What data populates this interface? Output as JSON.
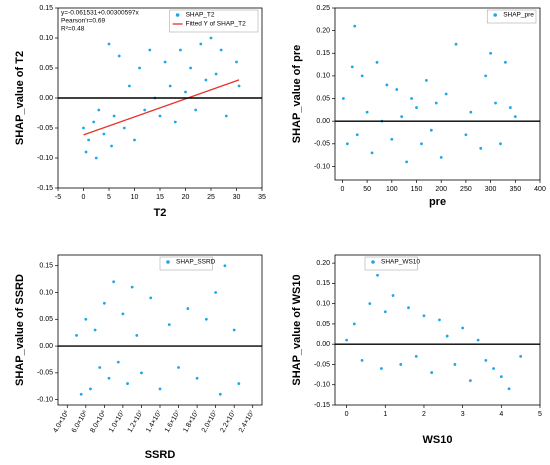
{
  "chart_data": [
    {
      "type": "scatter",
      "x_label": "T2",
      "y_label": "SHAP_value of T2",
      "xlim": [
        -5,
        35
      ],
      "ylim": [
        -0.15,
        0.15
      ],
      "xticks": [
        -5,
        0,
        5,
        10,
        15,
        20,
        25,
        30,
        35
      ],
      "yticks": [
        -0.15,
        {
          "value": -0.1,
          "label": "-0.10"
        },
        -0.05,
        {
          "value": 0,
          "label": "0.00"
        },
        0.05,
        {
          "value": 0.1,
          "label": "0.10"
        },
        0.15
      ],
      "reference_line": 0,
      "legend": "upper right",
      "annotations": [
        "y=-0.061531+0.00300597x",
        "Pearson'r=0.69",
        "R²=0.48"
      ],
      "series": [
        {
          "name": "SHAP_T2",
          "color": "#1ea7e8",
          "x": [
            0,
            0.5,
            1,
            2,
            2.5,
            3,
            4,
            5,
            5.5,
            6,
            7,
            8,
            9,
            10,
            11,
            12,
            13,
            14,
            15,
            16,
            17,
            18,
            19,
            20,
            21,
            22,
            23,
            24,
            25,
            26,
            27,
            28,
            29,
            30,
            30.5
          ],
          "values": [
            -0.05,
            -0.09,
            -0.07,
            -0.04,
            -0.1,
            -0.02,
            -0.06,
            0.09,
            -0.08,
            -0.03,
            0.07,
            -0.05,
            0.02,
            -0.07,
            0.05,
            -0.02,
            0.08,
            0,
            -0.03,
            0.06,
            0.02,
            -0.04,
            0.08,
            0.01,
            0.05,
            -0.02,
            0.09,
            0.03,
            0.1,
            0.04,
            0.08,
            -0.03,
            0.12,
            0.06,
            0.02
          ]
        },
        {
          "name": "Fitted Y of SHAP_T2",
          "color": "#e8312b",
          "type": "line",
          "x": [
            0,
            30.5
          ],
          "values": [
            -0.061531,
            0.030151
          ]
        }
      ]
    },
    {
      "type": "scatter",
      "x_label": "pre",
      "y_label": "SHAP_value of pre",
      "xlim": [
        -15,
        400
      ],
      "ylim": [
        -0.13,
        0.25
      ],
      "xticks": [
        0,
        50,
        100,
        150,
        200,
        250,
        300,
        350,
        400
      ],
      "yticks": [
        {
          "value": -0.1,
          "label": "-0.10"
        },
        -0.05,
        {
          "value": 0,
          "label": "0.00"
        },
        0.05,
        {
          "value": 0.1,
          "label": "0.10"
        },
        0.15,
        {
          "value": 0.2,
          "label": "0.20"
        },
        0.25
      ],
      "reference_line": 0,
      "legend": "upper right",
      "series": [
        {
          "name": "SHAP_pre",
          "color": "#1ea7e8",
          "x": [
            2,
            10,
            20,
            25,
            30,
            40,
            50,
            60,
            70,
            80,
            90,
            100,
            110,
            120,
            130,
            140,
            150,
            160,
            170,
            180,
            190,
            200,
            210,
            230,
            250,
            260,
            280,
            290,
            300,
            310,
            320,
            330,
            340,
            350
          ],
          "values": [
            0.05,
            -0.05,
            0.12,
            0.21,
            -0.03,
            0.1,
            0.02,
            -0.07,
            0.13,
            0,
            0.08,
            -0.04,
            0.07,
            0.01,
            -0.09,
            0.05,
            0.03,
            -0.05,
            0.09,
            -0.02,
            0.04,
            -0.08,
            0.06,
            0.17,
            -0.03,
            0.02,
            -0.06,
            0.1,
            0.15,
            0.04,
            -0.05,
            0.13,
            0.03,
            0.01
          ]
        }
      ]
    },
    {
      "type": "scatter",
      "x_label": "SSRD",
      "y_label": "SHAP_value of SSRD",
      "xlim": [
        3000000,
        25000000
      ],
      "ylim": [
        -0.11,
        0.17
      ],
      "xtick_rotation": -60,
      "xticks": [
        {
          "value": 4000000,
          "label": "4.0×10⁶"
        },
        {
          "value": 6000000,
          "label": "6.0×10⁶"
        },
        {
          "value": 8000000,
          "label": "8.0×10⁶"
        },
        {
          "value": 10000000,
          "label": "1.0×10⁷"
        },
        {
          "value": 12000000,
          "label": "1.2×10⁷"
        },
        {
          "value": 14000000,
          "label": "1.4×10⁷"
        },
        {
          "value": 16000000,
          "label": "1.6×10⁷"
        },
        {
          "value": 18000000,
          "label": "1.8×10⁷"
        },
        {
          "value": 20000000,
          "label": "2.0×10⁷"
        },
        {
          "value": 22000000,
          "label": "2.2×10⁷"
        },
        {
          "value": 24000000,
          "label": "2.4×10⁷"
        }
      ],
      "yticks": [
        {
          "value": -0.1,
          "label": "-0.10"
        },
        -0.05,
        {
          "value": 0,
          "label": "0.00"
        },
        0.05,
        {
          "value": 0.1,
          "label": "0.10"
        },
        0.15
      ],
      "reference_line": 0,
      "legend": "upper center",
      "series": [
        {
          "name": "SHAP_SSRD",
          "color": "#1ea7e8",
          "x": [
            5000000,
            5500000,
            6000000,
            6500000,
            7000000,
            7500000,
            8000000,
            8500000,
            9000000,
            9500000,
            10000000,
            10500000,
            11000000,
            11500000,
            12000000,
            13000000,
            14000000,
            15000000,
            16000000,
            17000000,
            18000000,
            19000000,
            20000000,
            20500000,
            21000000,
            22000000,
            22500000
          ],
          "values": [
            0.02,
            -0.09,
            0.05,
            -0.08,
            0.03,
            -0.04,
            0.08,
            -0.06,
            0.12,
            -0.03,
            0.06,
            -0.07,
            0.11,
            0.02,
            -0.05,
            0.09,
            -0.08,
            0.04,
            -0.04,
            0.07,
            -0.06,
            0.05,
            0.1,
            -0.09,
            0.15,
            0.03,
            -0.07
          ]
        }
      ]
    },
    {
      "type": "scatter",
      "x_label": "WS10",
      "y_label": "SHAP_value of WS10",
      "xlim": [
        -0.3,
        5
      ],
      "ylim": [
        -0.15,
        0.22
      ],
      "xticks": [
        0,
        1,
        2,
        3,
        4,
        5
      ],
      "yticks": [
        -0.15,
        {
          "value": -0.1,
          "label": "-0.10"
        },
        -0.05,
        {
          "value": 0,
          "label": "0.00"
        },
        0.05,
        {
          "value": 0.1,
          "label": "0.10"
        },
        0.15,
        {
          "value": 0.2,
          "label": "0.20"
        }
      ],
      "reference_line": 0,
      "legend": "upper left",
      "series": [
        {
          "name": "SHAP_WS10",
          "color": "#1ea7e8",
          "x": [
            0,
            0.2,
            0.4,
            0.6,
            0.7,
            0.8,
            0.9,
            1,
            1.2,
            1.4,
            1.6,
            1.8,
            2,
            2.2,
            2.4,
            2.6,
            2.8,
            3,
            3.2,
            3.4,
            3.6,
            3.8,
            4,
            4.2,
            4.5
          ],
          "values": [
            0.01,
            0.05,
            -0.04,
            0.1,
            0.2,
            0.17,
            -0.06,
            0.08,
            0.12,
            -0.05,
            0.09,
            -0.03,
            0.07,
            -0.07,
            0.06,
            0.02,
            -0.05,
            0.04,
            -0.09,
            0.01,
            -0.04,
            -0.06,
            -0.08,
            -0.11,
            -0.03
          ]
        }
      ]
    }
  ]
}
